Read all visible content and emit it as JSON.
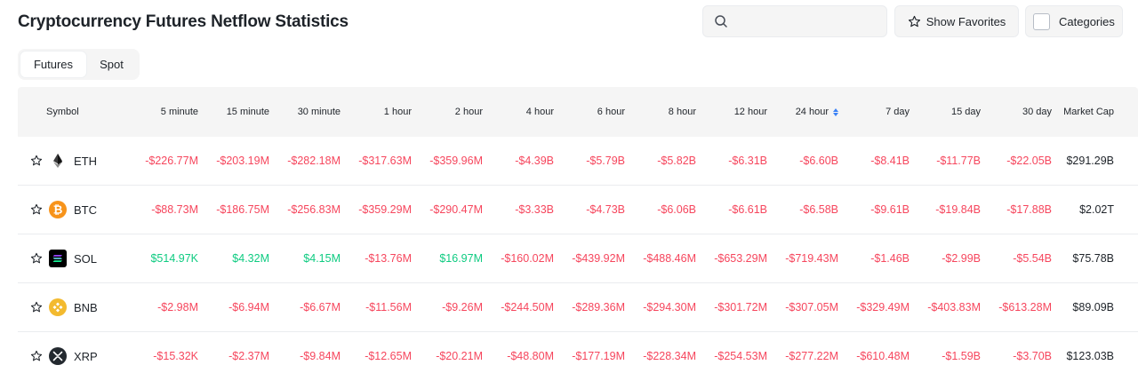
{
  "page_title": "Cryptocurrency Futures Netflow Statistics",
  "search": {
    "placeholder": "",
    "value": ""
  },
  "favorites_label": "Show Favorites",
  "categories_label": "Categories",
  "tabs": [
    {
      "label": "Futures",
      "active": true
    },
    {
      "label": "Spot",
      "active": false
    }
  ],
  "columns": {
    "symbol": "Symbol",
    "m5": "5 minute",
    "m15": "15 minute",
    "m30": "30 minute",
    "h1": "1 hour",
    "h2": "2 hour",
    "h4": "4 hour",
    "h6": "6 hour",
    "h8": "8 hour",
    "h12": "12 hour",
    "h24": "24 hour",
    "d7": "7 day",
    "d15": "15 day",
    "d30": "30 day",
    "cap": "Market Cap"
  },
  "sort_column": "24 hour",
  "colors": {
    "negative": "#f6465d",
    "positive": "#0ecb81",
    "eth": "#3c3c3d",
    "btc": "#f7931a",
    "sol": "#000000",
    "bnb": "#f3ba2f",
    "xrp": "#23292f"
  },
  "rows": [
    {
      "ticker": "ETH",
      "icon": "ethereum-icon",
      "v": [
        "-$226.77M",
        "-$203.19M",
        "-$282.18M",
        "-$317.63M",
        "-$359.96M",
        "-$4.39B",
        "-$5.79B",
        "-$5.82B",
        "-$6.31B",
        "-$6.60B",
        "-$8.41B",
        "-$11.77B",
        "-$22.05B"
      ],
      "cap": "$291.29B"
    },
    {
      "ticker": "BTC",
      "icon": "bitcoin-icon",
      "v": [
        "-$88.73M",
        "-$186.75M",
        "-$256.83M",
        "-$359.29M",
        "-$290.47M",
        "-$3.33B",
        "-$4.73B",
        "-$6.06B",
        "-$6.61B",
        "-$6.58B",
        "-$9.61B",
        "-$19.84B",
        "-$17.88B"
      ],
      "cap": "$2.02T"
    },
    {
      "ticker": "SOL",
      "icon": "solana-icon",
      "v": [
        "$514.97K",
        "$4.32M",
        "$4.15M",
        "-$13.76M",
        "$16.97M",
        "-$160.02M",
        "-$439.92M",
        "-$488.46M",
        "-$653.29M",
        "-$719.43M",
        "-$1.46B",
        "-$2.99B",
        "-$5.54B"
      ],
      "cap": "$75.78B"
    },
    {
      "ticker": "BNB",
      "icon": "bnb-icon",
      "v": [
        "-$2.98M",
        "-$6.94M",
        "-$6.67M",
        "-$11.56M",
        "-$9.26M",
        "-$244.50M",
        "-$289.36M",
        "-$294.30M",
        "-$301.72M",
        "-$307.05M",
        "-$329.49M",
        "-$403.83M",
        "-$613.28M"
      ],
      "cap": "$89.09B"
    },
    {
      "ticker": "XRP",
      "icon": "xrp-icon",
      "v": [
        "-$15.32K",
        "-$2.37M",
        "-$9.84M",
        "-$12.65M",
        "-$20.21M",
        "-$48.80M",
        "-$177.19M",
        "-$228.34M",
        "-$254.53M",
        "-$277.22M",
        "-$610.48M",
        "-$1.59B",
        "-$3.70B"
      ],
      "cap": "$123.03B"
    }
  ]
}
